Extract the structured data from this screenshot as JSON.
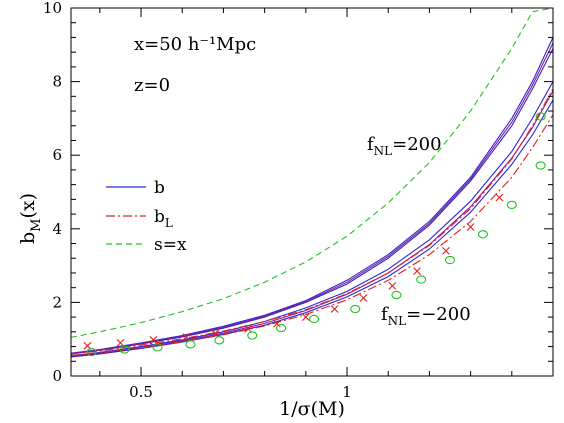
{
  "chart_data": {
    "type": "line",
    "xlabel": "1/σ(M)",
    "ylabel_main": "b",
    "ylabel_sub": "M",
    "ylabel_tail": "(x)",
    "xlim": [
      0.33,
      1.5
    ],
    "ylim": [
      0,
      10
    ],
    "x_ticks": [
      0.5,
      1
    ],
    "x_tick_labels": [
      "0.5",
      "1"
    ],
    "y_ticks": [
      0,
      2,
      4,
      6,
      8,
      10
    ],
    "y_tick_labels": [
      "0",
      "2",
      "4",
      "6",
      "8",
      "10"
    ],
    "annotations": {
      "separation": "x=50 h⁻¹Mpc",
      "redshift": "z=0",
      "fnl_pos_main": "f",
      "fnl_pos_sub": "NL",
      "fnl_pos_tail": "=200",
      "fnl_neg_main": "f",
      "fnl_neg_sub": "NL",
      "fnl_neg_tail": "=−200"
    },
    "legend": {
      "placement": "left",
      "entries": [
        {
          "main": "b",
          "sub": "",
          "style": "solid",
          "color": "#2828d8"
        },
        {
          "main": "b",
          "sub": "L",
          "style": "dashdot",
          "color": "#e02020"
        },
        {
          "main": "s=x",
          "sub": "",
          "style": "dashed",
          "color": "#20c020"
        }
      ]
    },
    "x": [
      0.33,
      0.4,
      0.5,
      0.6,
      0.7,
      0.8,
      0.9,
      1.0,
      1.1,
      1.2,
      1.3,
      1.4,
      1.45,
      1.5
    ],
    "series": [
      {
        "name": "s=x",
        "style": "dashed",
        "color": "#20c020",
        "values": [
          1.05,
          1.2,
          1.45,
          1.75,
          2.1,
          2.55,
          3.1,
          3.8,
          4.7,
          5.8,
          7.2,
          8.9,
          9.9,
          10.0
        ]
      },
      {
        "name": "b",
        "style": "solid",
        "color": "#2828d8",
        "values": [
          0.62,
          0.72,
          0.9,
          1.1,
          1.35,
          1.65,
          2.05,
          2.6,
          3.3,
          4.2,
          5.4,
          7.0,
          8.0,
          9.2
        ]
      },
      {
        "name": "b",
        "style": "solid",
        "color": "#2828d8",
        "values": [
          0.6,
          0.7,
          0.87,
          1.06,
          1.3,
          1.6,
          2.0,
          2.5,
          3.2,
          4.1,
          5.3,
          6.8,
          7.8,
          8.9
        ]
      },
      {
        "name": "b",
        "style": "solid",
        "color": "#2828d8",
        "values": [
          0.55,
          0.64,
          0.8,
          0.98,
          1.2,
          1.48,
          1.85,
          2.3,
          2.9,
          3.7,
          4.75,
          6.1,
          7.0,
          8.0
        ]
      },
      {
        "name": "b",
        "style": "solid",
        "color": "#2828d8",
        "values": [
          0.52,
          0.6,
          0.75,
          0.92,
          1.13,
          1.38,
          1.72,
          2.15,
          2.7,
          3.45,
          4.45,
          5.75,
          6.55,
          7.5
        ]
      },
      {
        "name": "b",
        "style": "solid",
        "color": "#8a1a8a",
        "values": [
          0.6,
          0.7,
          0.88,
          1.08,
          1.32,
          1.62,
          2.02,
          2.55,
          3.25,
          4.15,
          5.35,
          6.9,
          7.9,
          9.05
        ]
      },
      {
        "name": "b",
        "style": "solid",
        "color": "#8a1a8a",
        "values": [
          0.53,
          0.62,
          0.77,
          0.95,
          1.16,
          1.43,
          1.78,
          2.22,
          2.8,
          3.57,
          4.6,
          5.92,
          6.75,
          7.75
        ]
      },
      {
        "name": "b_L",
        "style": "dashdot",
        "color": "#e02020",
        "values": [
          0.6,
          0.68,
          0.84,
          1.01,
          1.22,
          1.48,
          1.8,
          2.24,
          2.8,
          3.55,
          4.55,
          5.9,
          6.8,
          7.8
        ]
      },
      {
        "name": "b_L",
        "style": "dashdot",
        "color": "#e02020",
        "values": [
          0.56,
          0.63,
          0.77,
          0.93,
          1.12,
          1.36,
          1.67,
          2.07,
          2.6,
          3.3,
          4.2,
          5.4,
          6.2,
          7.1
        ]
      }
    ],
    "markers": {
      "crosses": {
        "color": "#e02020",
        "x": [
          0.37,
          0.45,
          0.53,
          0.61,
          0.68,
          0.76,
          0.83,
          0.9,
          0.97,
          1.04,
          1.11,
          1.17,
          1.24,
          1.3,
          1.37
        ],
        "y": [
          0.82,
          0.9,
          0.98,
          1.06,
          1.16,
          1.28,
          1.42,
          1.6,
          1.82,
          2.12,
          2.45,
          2.85,
          3.4,
          4.05,
          4.85
        ]
      },
      "circles": {
        "color": "#20c020",
        "x": [
          0.38,
          0.46,
          0.54,
          0.62,
          0.69,
          0.77,
          0.84,
          0.92,
          1.02,
          1.12,
          1.18,
          1.25,
          1.33,
          1.4,
          1.47
        ],
        "y": [
          0.65,
          0.72,
          0.78,
          0.86,
          0.97,
          1.1,
          1.3,
          1.55,
          1.82,
          2.2,
          2.62,
          3.15,
          3.85,
          4.65,
          5.72
        ]
      }
    },
    "extra_circles": {
      "color": "#20c020",
      "x": [
        1.47
      ],
      "y": [
        7.05
      ]
    }
  }
}
